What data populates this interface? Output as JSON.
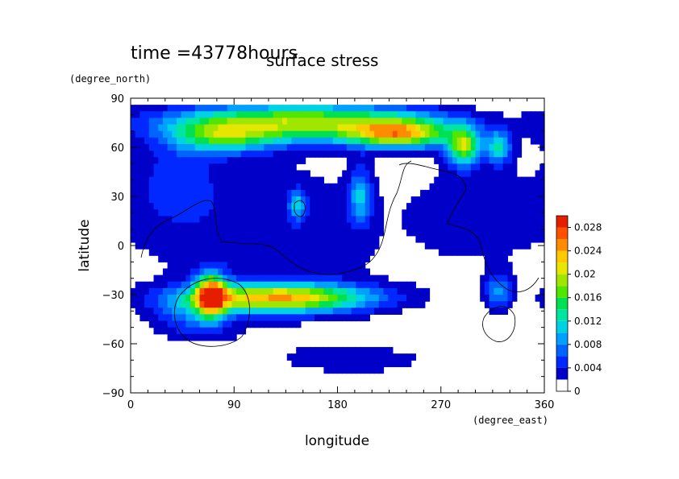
{
  "chart_data": {
    "type": "heatmap",
    "time_label": "time =43778hours",
    "title": "surface stress",
    "xlabel": "longitude",
    "ylabel": "latitude",
    "x_unit": "(degree_east)",
    "y_unit": "(degree_north)",
    "xlim": [
      0,
      360
    ],
    "ylim": [
      -90,
      90
    ],
    "x_ticks": [
      "0",
      "90",
      "180",
      "270",
      "360"
    ],
    "y_ticks": [
      "90",
      "60",
      "30",
      "0",
      "−30",
      "−60",
      "−90"
    ],
    "colorbar": {
      "min": 0,
      "max": 0.03,
      "tick_labels": [
        "0.028",
        "0.024",
        "0.02",
        "0.016",
        "0.012",
        "0.008",
        "0.004",
        "0"
      ],
      "colors": [
        "#ffffff",
        "#0000c8",
        "#0028ff",
        "#0064ff",
        "#00a0ff",
        "#00d2e6",
        "#00e6a0",
        "#00e050",
        "#50e600",
        "#a0e600",
        "#e6e600",
        "#ffc800",
        "#ff8c00",
        "#ff5000",
        "#e61e00"
      ],
      "levels": [
        0,
        0.002,
        0.004,
        0.006,
        0.008,
        0.01,
        0.012,
        0.014,
        0.016,
        0.018,
        0.02,
        0.022,
        0.024,
        0.026,
        0.028
      ]
    },
    "features": [
      {
        "lon": 150,
        "lat": 75,
        "lon_w": 80,
        "lat_w": 8,
        "amp": 0.019
      },
      {
        "lon": 235,
        "lat": 68,
        "lon_w": 30,
        "lat_w": 6,
        "amp": 0.018
      },
      {
        "lon": 290,
        "lat": 60,
        "lon_w": 10,
        "lat_w": 8,
        "amp": 0.017
      },
      {
        "lon": 80,
        "lat": 66,
        "lon_w": 30,
        "lat_w": 7,
        "amp": 0.011
      },
      {
        "lon": 130,
        "lat": -32,
        "lon_w": 55,
        "lat_w": 6,
        "amp": 0.022
      },
      {
        "lon": 70,
        "lat": -30,
        "lon_w": 9,
        "lat_w": 9,
        "amp": 0.022
      },
      {
        "lon": 200,
        "lat": 30,
        "lon_w": 7,
        "lat_w": 12,
        "amp": 0.009
      },
      {
        "lon": 145,
        "lat": 25,
        "lon_w": 5,
        "lat_w": 6,
        "amp": 0.009
      },
      {
        "lon": 320,
        "lat": -28,
        "lon_w": 8,
        "lat_w": 8,
        "amp": 0.008
      },
      {
        "lon": 320,
        "lat": 60,
        "lon_w": 8,
        "lat_w": 7,
        "amp": 0.011
      },
      {
        "lon": 55,
        "lat": -42,
        "lon_w": 25,
        "lat_w": 10,
        "amp": 0.006
      },
      {
        "lon": 120,
        "lat": 5,
        "lon_w": 80,
        "lat_w": 40,
        "amp": 0.0035
      },
      {
        "lon": 40,
        "lat": 40,
        "lon_w": 25,
        "lat_w": 20,
        "amp": 0.004
      },
      {
        "lon": 300,
        "lat": 20,
        "lon_w": 40,
        "lat_w": 25,
        "amp": 0.003
      },
      {
        "lon": 200,
        "lat": -70,
        "lon_w": 60,
        "lat_w": 8,
        "amp": 0.0025
      }
    ]
  }
}
